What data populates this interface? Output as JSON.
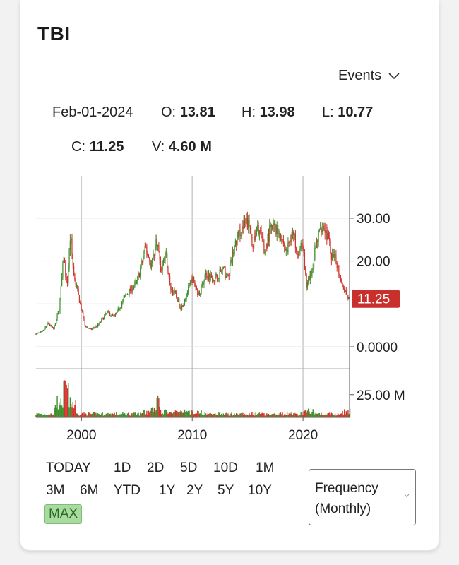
{
  "header": {
    "ticker": "TBI"
  },
  "events": {
    "label": "Events"
  },
  "ohlc": {
    "date": "Feb-01-2024",
    "open_label": "O:",
    "open": "13.81",
    "high_label": "H:",
    "high": "13.98",
    "low_label": "L:",
    "low": "10.77",
    "close_label": "C:",
    "close": "11.25",
    "volume_label": "V:",
    "volume": "4.60 M"
  },
  "ranges": [
    "TODAY",
    "1D",
    "2D",
    "5D",
    "10D",
    "1M",
    "3M",
    "6M",
    "YTD",
    "1Y",
    "2Y",
    "5Y",
    "10Y",
    "MAX"
  ],
  "active_range": "MAX",
  "frequency": {
    "line1": "Frequency",
    "line2": "(Monthly)"
  },
  "colors": {
    "up": "#3e8e2c",
    "down": "#d0342c",
    "last_price_bg": "#c9302c",
    "grid": "#e3e3e3",
    "active_range_bg": "#a9dba0"
  },
  "chart_data": {
    "type": "candlestick",
    "frequency": "monthly",
    "price_axis": {
      "ticks": [
        "0.0000",
        "20.00",
        "30.00"
      ],
      "tick_values": [
        0,
        20,
        30
      ],
      "range": [
        0,
        33
      ]
    },
    "volume_axis": {
      "ticks": [
        "25.00 M"
      ],
      "tick_values": [
        25
      ],
      "unit": "M"
    },
    "x_axis": {
      "ticks": [
        "2000",
        "2010",
        "2020"
      ],
      "tick_values": [
        2000,
        2010,
        2020
      ],
      "range": [
        1995.9,
        2024.2
      ]
    },
    "last_price_label": "11.25",
    "last_price": 11.25,
    "price_path": [
      [
        1995.9,
        3.0
      ],
      [
        1996.5,
        3.5
      ],
      [
        1997.0,
        5.5
      ],
      [
        1997.5,
        4.0
      ],
      [
        1998.0,
        9.0
      ],
      [
        1998.4,
        21.0
      ],
      [
        1998.7,
        14.0
      ],
      [
        1999.0,
        26.0
      ],
      [
        1999.3,
        17.0
      ],
      [
        1999.8,
        11.0
      ],
      [
        2000.3,
        5.0
      ],
      [
        2000.8,
        4.0
      ],
      [
        2001.5,
        5.0
      ],
      [
        2002.3,
        8.0
      ],
      [
        2003.0,
        7.0
      ],
      [
        2004.0,
        12.0
      ],
      [
        2005.0,
        15.0
      ],
      [
        2005.8,
        23.0
      ],
      [
        2006.3,
        19.0
      ],
      [
        2006.8,
        25.0
      ],
      [
        2007.2,
        18.0
      ],
      [
        2007.6,
        22.0
      ],
      [
        2008.0,
        14.0
      ],
      [
        2008.5,
        12.0
      ],
      [
        2009.0,
        9.0
      ],
      [
        2009.6,
        13.0
      ],
      [
        2010.0,
        16.0
      ],
      [
        2010.6,
        12.0
      ],
      [
        2011.2,
        17.0
      ],
      [
        2012.0,
        16.0
      ],
      [
        2012.8,
        18.0
      ],
      [
        2013.2,
        16.0
      ],
      [
        2013.8,
        23.0
      ],
      [
        2014.3,
        27.0
      ],
      [
        2015.0,
        29.0
      ],
      [
        2015.5,
        24.0
      ],
      [
        2016.0,
        28.0
      ],
      [
        2016.5,
        22.0
      ],
      [
        2017.0,
        27.0
      ],
      [
        2017.5,
        28.0
      ],
      [
        2018.0,
        26.0
      ],
      [
        2018.5,
        22.0
      ],
      [
        2019.0,
        27.0
      ],
      [
        2019.6,
        22.0
      ],
      [
        2020.0,
        24.0
      ],
      [
        2020.3,
        14.0
      ],
      [
        2020.8,
        18.0
      ],
      [
        2021.3,
        25.0
      ],
      [
        2021.7,
        29.0
      ],
      [
        2022.2,
        26.0
      ],
      [
        2022.6,
        21.0
      ],
      [
        2023.0,
        20.0
      ],
      [
        2023.4,
        16.0
      ],
      [
        2023.8,
        13.0
      ],
      [
        2024.1,
        11.25
      ]
    ]
  }
}
